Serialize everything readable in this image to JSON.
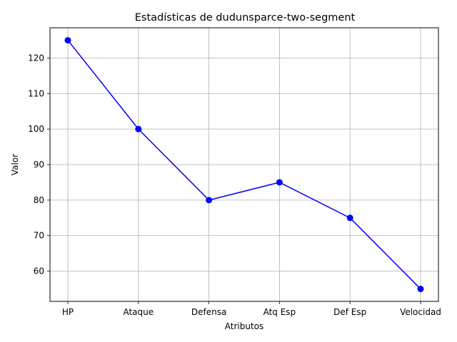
{
  "chart_data": {
    "type": "line",
    "title": "Estadísticas de dudunsparce-two-segment",
    "xlabel": "Atributos",
    "ylabel": "Valor",
    "categories": [
      "HP",
      "Ataque",
      "Defensa",
      "Atq Esp",
      "Def Esp",
      "Velocidad"
    ],
    "series": [
      {
        "values": [
          125,
          100,
          80,
          85,
          75,
          55
        ],
        "color": "#0000ff",
        "marker": "circle"
      }
    ],
    "ylim": [
      51.5,
      128.5
    ],
    "yticks": [
      60,
      70,
      80,
      90,
      100,
      110,
      120
    ],
    "grid": true,
    "grid_color": "#b0b0b0"
  }
}
